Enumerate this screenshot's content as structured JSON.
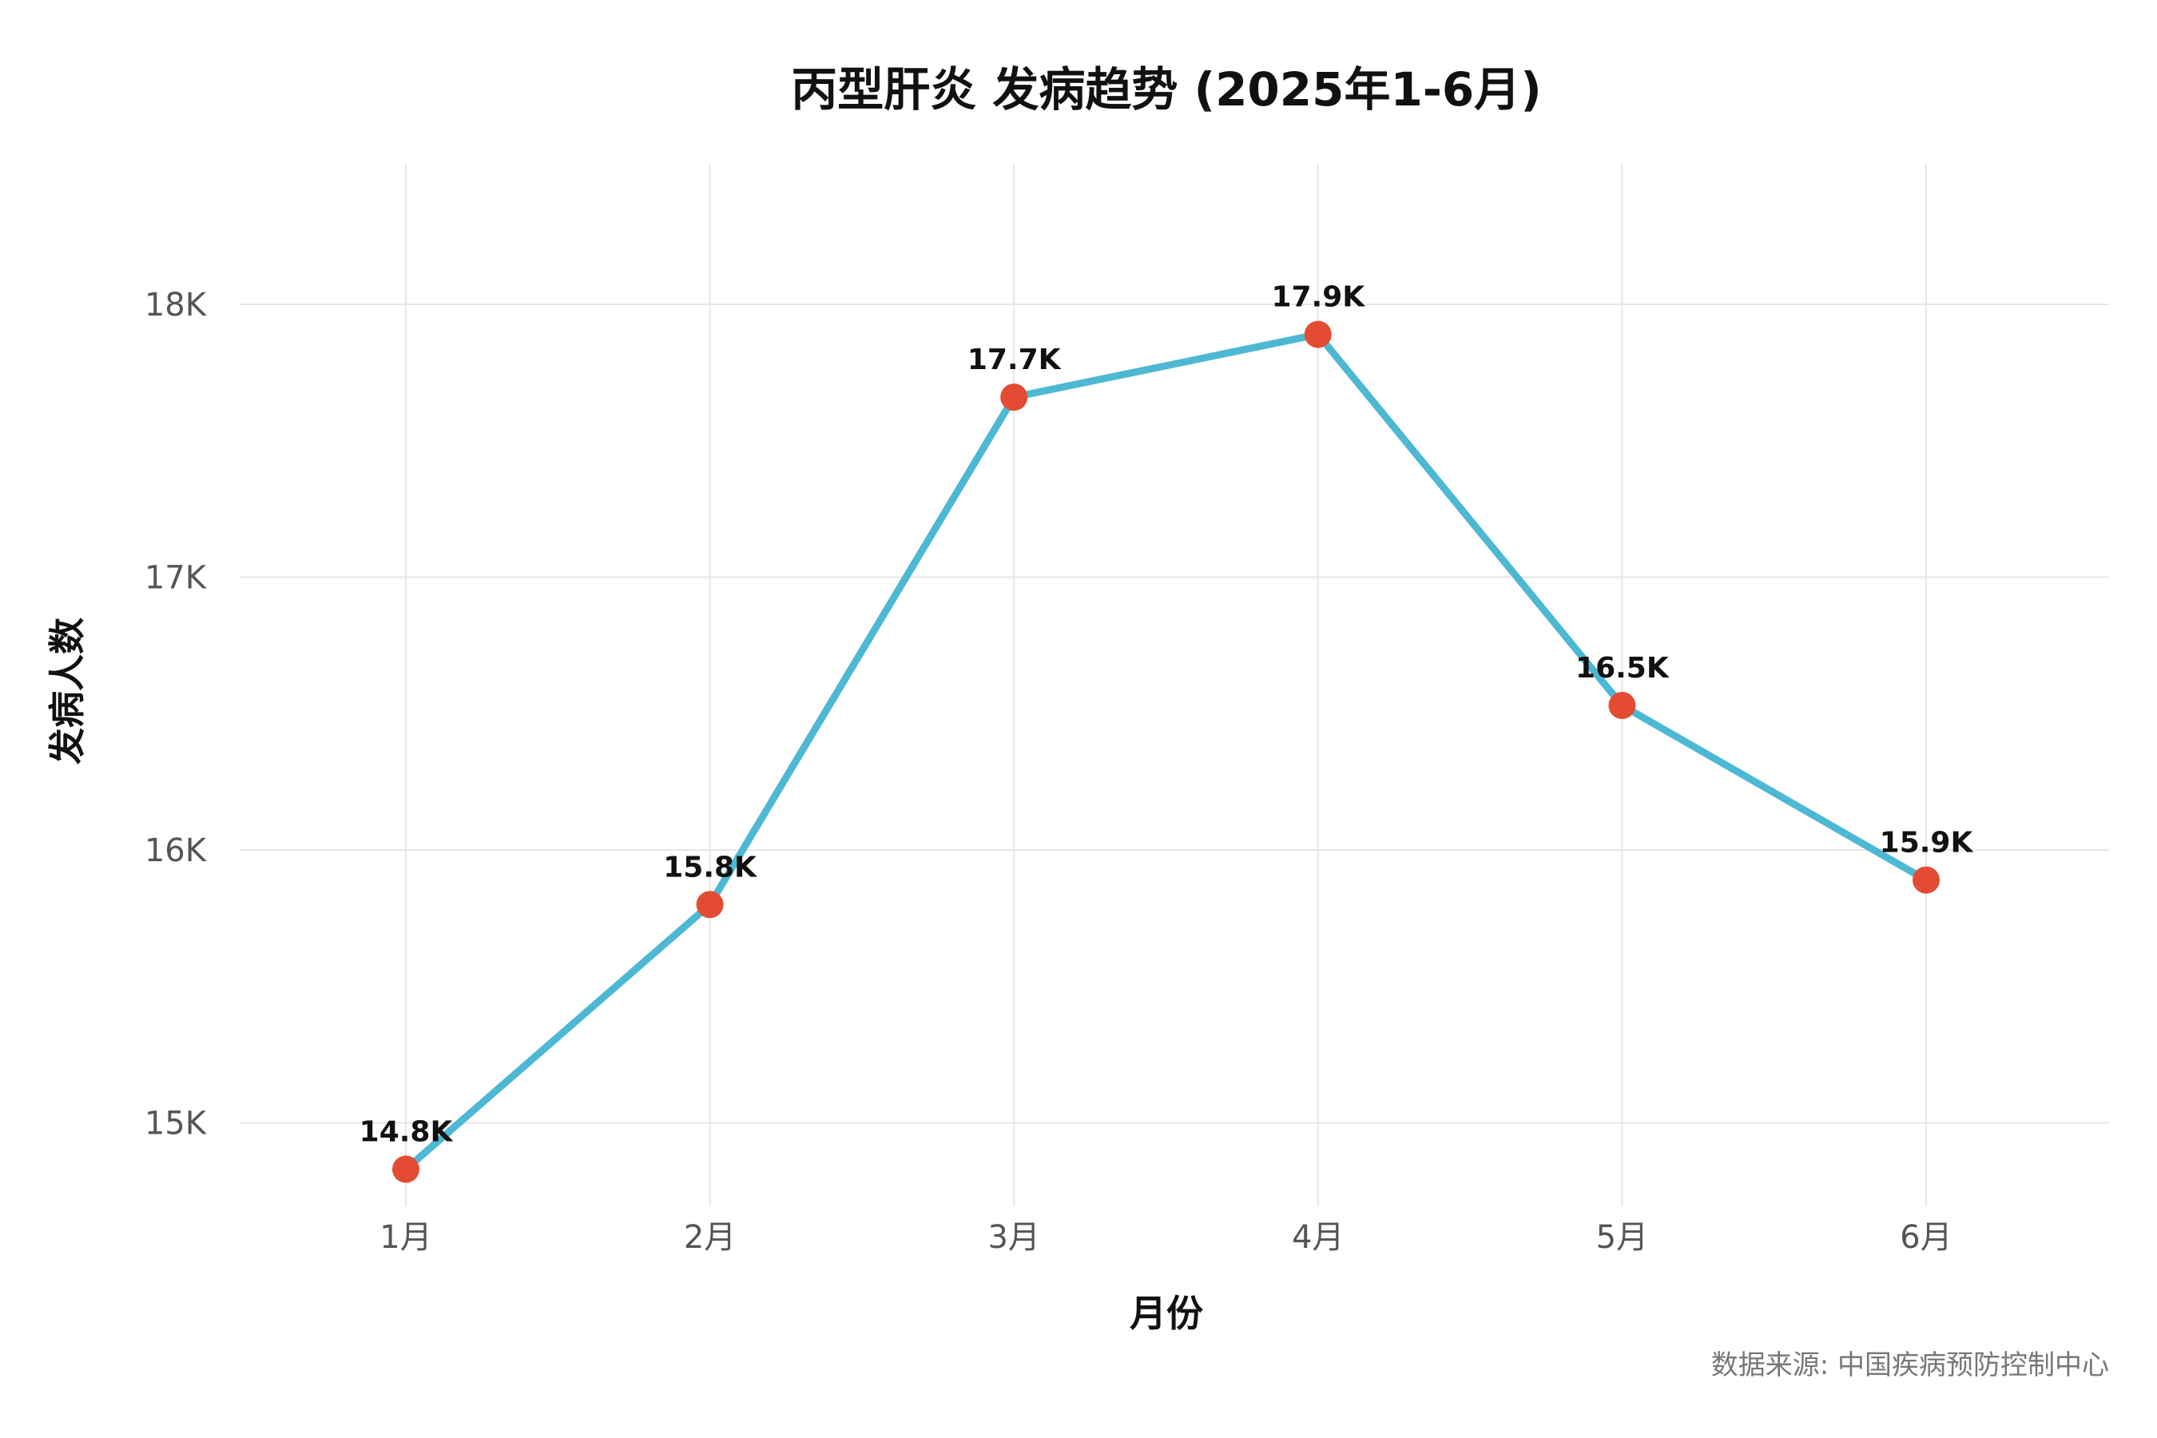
{
  "chart_data": {
    "type": "line",
    "title": "丙型肝炎 发病趋势 (2025年1-6月)",
    "xlabel": "月份",
    "ylabel": "发病人数",
    "caption": "数据来源: 中国疾病预防控制中心",
    "categories": [
      "1月",
      "2月",
      "3月",
      "4月",
      "5月",
      "6月"
    ],
    "values": [
      14830,
      15800,
      17660,
      17890,
      16530,
      15890
    ],
    "data_labels": [
      "14.8K",
      "15.8K",
      "17.7K",
      "17.9K",
      "16.5K",
      "15.9K"
    ],
    "y_ticks": [
      15000,
      16000,
      17000,
      18000
    ],
    "y_tick_labels": [
      "15K",
      "16K",
      "17K",
      "18K"
    ],
    "ylim": [
      14700,
      18500
    ],
    "grid": true,
    "legend": "none",
    "colors": {
      "line": "#4db8d4",
      "point": "#e34c33",
      "grid": "#e6e6e6"
    }
  }
}
